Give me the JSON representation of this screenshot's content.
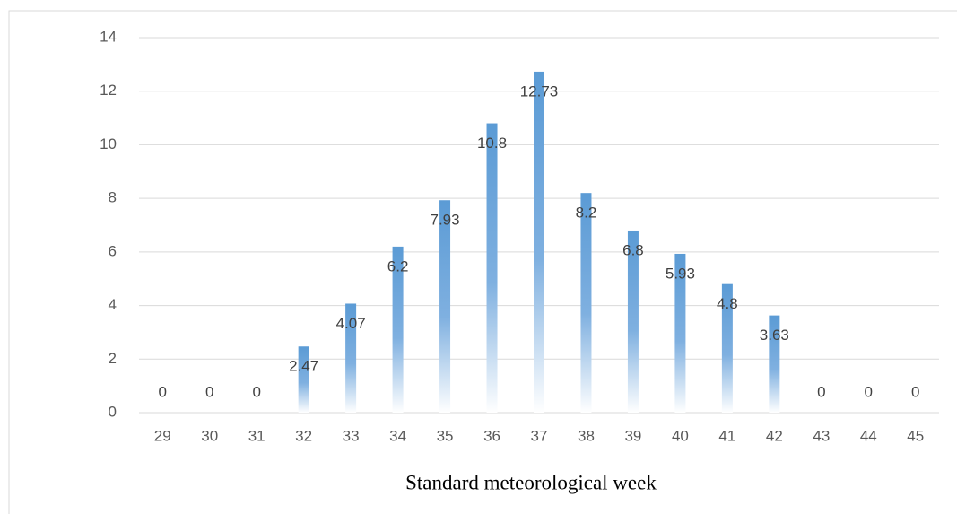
{
  "chart_data": {
    "type": "bar",
    "x_label": "Standard meteorological week",
    "categories": [
      "29",
      "30",
      "31",
      "32",
      "33",
      "34",
      "35",
      "36",
      "37",
      "38",
      "39",
      "40",
      "41",
      "42",
      "43",
      "44",
      "45"
    ],
    "values": [
      0,
      0,
      0,
      2.47,
      4.07,
      6.2,
      7.93,
      10.8,
      12.73,
      8.2,
      6.8,
      5.93,
      4.8,
      3.63,
      0,
      0,
      0
    ],
    "color": "#5b9bd5",
    "ylim": [
      0,
      14
    ],
    "yticks": [
      0,
      2,
      4,
      6,
      8,
      10,
      12,
      14
    ],
    "grid": true
  }
}
